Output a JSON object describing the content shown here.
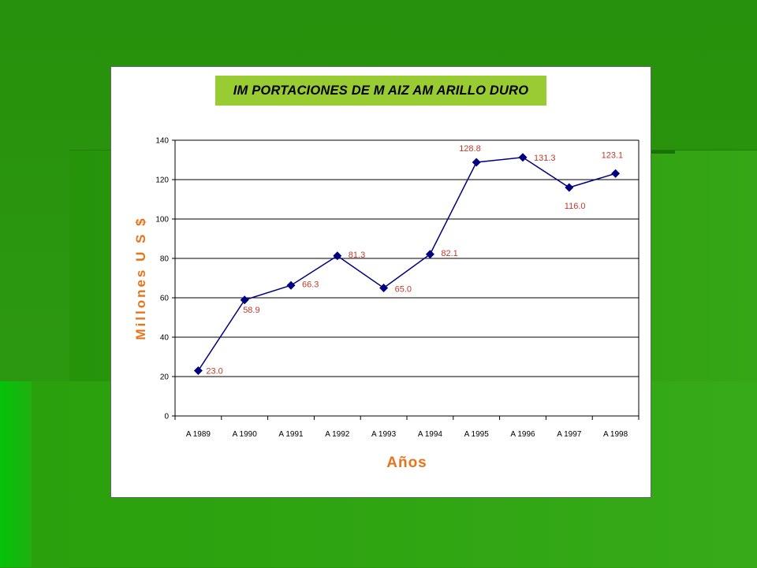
{
  "chart_data": {
    "type": "line",
    "title": "IM PORTACIONES DE M AIZ AM ARILLO DURO",
    "xlabel": "Años",
    "ylabel": "Millones U S $",
    "categories": [
      "A 1989",
      "A 1990",
      "A 1991",
      "A 1992",
      "A 1993",
      "A 1994",
      "A 1995",
      "A 1996",
      "A 1997",
      "A 1998"
    ],
    "series": [
      {
        "values": [
          23.0,
          58.9,
          66.3,
          81.3,
          65.0,
          82.1,
          128.8,
          131.3,
          116.0,
          123.1
        ],
        "labels": [
          "23.0",
          "58.9",
          "66.3",
          "81.3",
          "65.0",
          "82.1",
          "128.8",
          "131.3",
          "116.0",
          "123.1"
        ]
      }
    ],
    "ylim": [
      0,
      140
    ],
    "yticks": [
      "0",
      "20",
      "40",
      "60",
      "80",
      "100",
      "120",
      "140"
    ],
    "grid": true,
    "colors": {
      "line": "#000080",
      "marker": "#000080",
      "data_label": "#c0392b",
      "axis_title": "#e8731a",
      "title_bg": "#99cc33"
    }
  }
}
